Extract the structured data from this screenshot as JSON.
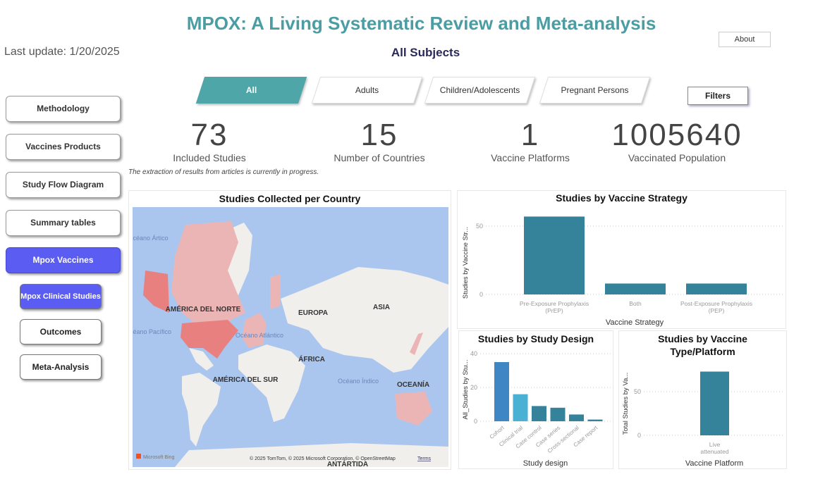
{
  "header": {
    "title": "MPOX: A Living Systematic Review and Meta-analysis",
    "subtitle": "All Subjects",
    "last_update": "Last update: 1/20/2025",
    "about_label": "About",
    "filters_label": "Filters"
  },
  "nav": {
    "items": [
      {
        "label": "Methodology"
      },
      {
        "label": "Vaccines Products"
      },
      {
        "label": "Study Flow Diagram"
      },
      {
        "label": "Summary tables"
      },
      {
        "label": "Mpox Vaccines",
        "active": true
      }
    ],
    "subitems": [
      {
        "label": "Mpox Clinical Studies",
        "active": true
      },
      {
        "label": "Outcomes"
      },
      {
        "label": "Meta-Analysis"
      }
    ]
  },
  "segments": [
    {
      "label": "All",
      "active": true
    },
    {
      "label": "Adults"
    },
    {
      "label": "Children/Adolescents"
    },
    {
      "label": "Pregnant Persons"
    }
  ],
  "kpis": [
    {
      "value": "73",
      "label": "Included Studies"
    },
    {
      "value": "15",
      "label": "Number of Countries"
    },
    {
      "value": "1",
      "label": "Vaccine Platforms"
    },
    {
      "value": "1005640",
      "label": "Vaccinated Population"
    }
  ],
  "note": "The extraction of results from articles is currently in progress.",
  "map": {
    "title": "Studies Collected per Country",
    "labels": {
      "arctic": "Océano Ártico",
      "pacific": "Océano Pacífico",
      "atlantic": "Océano Atlántico",
      "indian": "Océano Índico",
      "north_america": "AMÉRICA DEL NORTE",
      "south_america": "AMÉRICA DEL SUR",
      "europe": "EUROPA",
      "asia": "ASIA",
      "africa": "ÁFRICA",
      "oceania": "OCEANÍA",
      "antarctica": "ANTÁRTIDA"
    },
    "bing": "Microsoft Bing",
    "attribution": "© 2025 TomTom, © 2025 Microsoft Corporation, © OpenStreetMap",
    "terms": "Terms",
    "highlight_color": "#e88080"
  },
  "chart_data": [
    {
      "type": "bar",
      "title": "Studies by Vaccine Strategy",
      "xlabel": "Vaccine Strategy",
      "ylabel": "Studies by Vaccine Str...",
      "categories": [
        "Pre-Exposure Prophylaxis (PrEP)",
        "Both",
        "Post-Exposure Prophylaxis (PEP)"
      ],
      "values": [
        57,
        8,
        8
      ],
      "yticks": [
        0,
        50
      ],
      "ylim": [
        0,
        60
      ],
      "colors": [
        "#35829b",
        "#35829b",
        "#35829b"
      ]
    },
    {
      "type": "bar",
      "title": "Studies by Study Design",
      "xlabel": "Study design",
      "ylabel": "All_Studies by Stu...",
      "categories": [
        "Cohort",
        "Clinical trial",
        "Case control",
        "Case series",
        "Cross-sectional",
        "Case report"
      ],
      "values": [
        35,
        16,
        9,
        8,
        4,
        1
      ],
      "yticks": [
        0,
        20,
        40
      ],
      "ylim": [
        0,
        40
      ],
      "colors": [
        "#3f86c4",
        "#4ab0d4",
        "#35829b",
        "#35829b",
        "#35829b",
        "#35829b"
      ]
    },
    {
      "type": "bar",
      "title": "Studies by Vaccine Type/Platform",
      "xlabel": "Vaccine Platform",
      "ylabel": "Total Studies by Va...",
      "categories": [
        "Live attenuated"
      ],
      "values": [
        73
      ],
      "yticks": [
        0,
        50
      ],
      "ylim": [
        0,
        75
      ],
      "colors": [
        "#35829b"
      ]
    }
  ]
}
